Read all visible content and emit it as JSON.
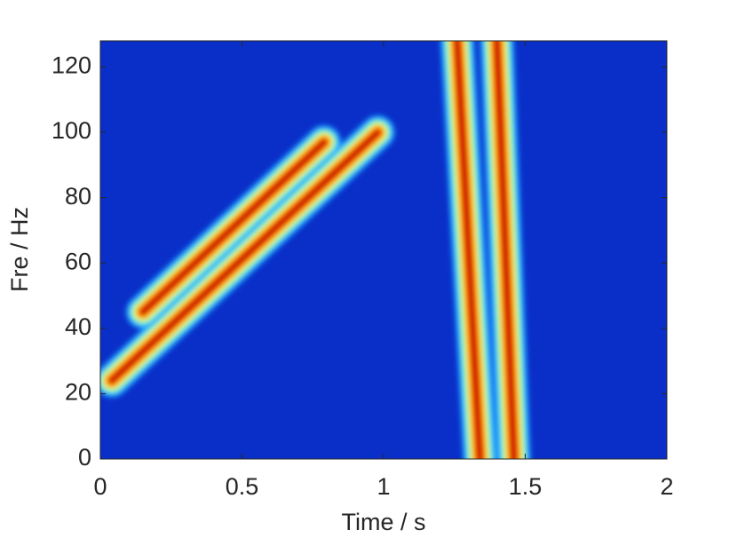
{
  "chart_data": {
    "type": "spectrogram",
    "xlabel": "Time / s",
    "ylabel": "Fre / Hz",
    "xlim": [
      0,
      2
    ],
    "xticks": [
      0,
      0.5,
      1,
      1.5,
      2
    ],
    "ylim": [
      0,
      128
    ],
    "yticks": [
      0,
      20,
      40,
      60,
      80,
      100,
      120
    ],
    "background": "#0a2fc8",
    "colormap": [
      "#1aa0ff",
      "#7fffc0",
      "#ffe000",
      "#ff6a00",
      "#c80000"
    ],
    "series": [
      {
        "x": [
          0.04,
          0.98
        ],
        "values": [
          24,
          100
        ]
      },
      {
        "x": [
          0.15,
          0.79
        ],
        "values": [
          45,
          97
        ]
      },
      {
        "x": [
          1.34,
          1.26
        ],
        "values": [
          0,
          128
        ]
      },
      {
        "x": [
          1.46,
          1.4
        ],
        "values": [
          0,
          128
        ]
      }
    ]
  }
}
